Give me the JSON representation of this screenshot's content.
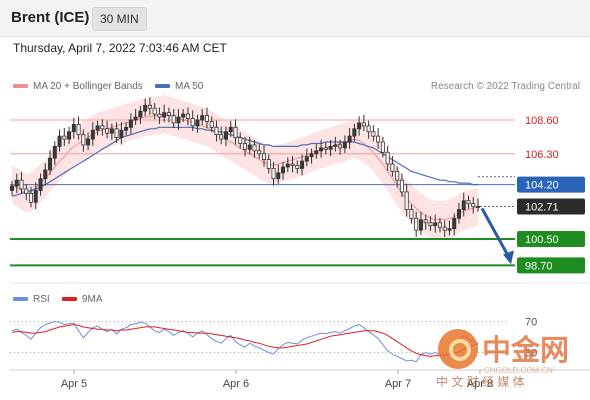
{
  "header": {
    "instrument": "Brent (ICE)",
    "timeframe": "30 MIN"
  },
  "timestamp": "Thursday, April 7, 2022 7:03:46 AM CET",
  "legend": {
    "ma20": "MA 20 + Bollinger Bands",
    "ma50": "MA 50"
  },
  "credit": "Research © 2022 Trading Central",
  "watermark": {
    "brand": "中金网",
    "domain": "CNGOLD.COM.CN",
    "tagline": "中 文 财 经 媒 体"
  },
  "colors": {
    "ma20": "#f08f8f",
    "ma50": "#4a6fb5",
    "band": "#fde3e3",
    "support": "#1f8c1f",
    "rsi": "#6f8ed8",
    "rsi_ma": "#dd2020",
    "arrow": "#2a5d9f"
  },
  "chart_data": [
    {
      "type": "candlestick",
      "title": "Brent (ICE)",
      "timeframe": "30 MIN",
      "x_ticks": [
        "Apr 5",
        "Apr 6",
        "Apr 7",
        "Apr 8"
      ],
      "y_range": [
        97.5,
        110.3
      ],
      "levels": [
        {
          "value": 108.6,
          "label": "108.60",
          "style": "resistance"
        },
        {
          "value": 106.3,
          "label": "106.30",
          "style": "resistance"
        },
        {
          "value": 104.2,
          "label": "104.20",
          "style": "pivot"
        },
        {
          "value": 102.71,
          "label": "102.71",
          "style": "last"
        },
        {
          "value": 100.5,
          "label": "100.50",
          "style": "support"
        },
        {
          "value": 98.7,
          "label": "98.70",
          "style": "support"
        }
      ],
      "forecast_arrow": {
        "from": 102.71,
        "to": 98.7
      },
      "close": [
        104.1,
        104.5,
        103.9,
        103.6,
        103.0,
        103.8,
        104.6,
        105.2,
        106.0,
        106.8,
        107.5,
        107.3,
        107.8,
        108.3,
        107.6,
        106.9,
        107.3,
        107.9,
        108.2,
        108.0,
        107.7,
        108.0,
        107.4,
        107.9,
        108.1,
        108.6,
        108.8,
        109.2,
        109.6,
        109.4,
        109.0,
        108.8,
        109.1,
        108.9,
        108.4,
        108.8,
        109.0,
        108.7,
        108.2,
        108.6,
        108.9,
        108.5,
        108.1,
        107.6,
        107.3,
        107.8,
        108.1,
        107.4,
        107.0,
        106.6,
        106.9,
        106.5,
        106.3,
        105.9,
        105.3,
        104.6,
        105.0,
        105.4,
        105.6,
        105.5,
        105.3,
        105.8,
        106.1,
        106.3,
        106.5,
        106.7,
        106.6,
        106.8,
        106.9,
        106.7,
        107.1,
        107.5,
        108.0,
        108.4,
        108.2,
        107.8,
        107.5,
        107.1,
        106.4,
        105.6,
        105.1,
        104.5,
        103.7,
        102.5,
        101.9,
        101.1,
        101.8,
        101.6,
        101.4,
        101.6,
        101.3,
        101.1,
        101.2,
        101.9,
        102.5,
        103.1,
        102.9,
        102.7,
        102.71
      ],
      "ma20": [
        104.2,
        104.0,
        103.8,
        103.6,
        103.7,
        104.0,
        104.3,
        104.6,
        105.0,
        105.4,
        105.8,
        106.1,
        106.5,
        106.8,
        107.0,
        107.2,
        107.4,
        107.6,
        107.8,
        107.9,
        108.0,
        108.1,
        108.2,
        108.3,
        108.4,
        108.5,
        108.6,
        108.7,
        108.8,
        108.8,
        108.9,
        108.9,
        109.0,
        108.9,
        108.8,
        108.7,
        108.6,
        108.5,
        108.4,
        108.3,
        108.2,
        108.1,
        107.9,
        107.7,
        107.5,
        107.3,
        107.1,
        106.9,
        106.7,
        106.5,
        106.3,
        106.1,
        105.9,
        105.7,
        105.6,
        105.5,
        105.6,
        105.7,
        105.8,
        105.9,
        106.0,
        106.1,
        106.2,
        106.4,
        106.5,
        106.6,
        106.7,
        106.8,
        106.9,
        107.0,
        107.1,
        107.2,
        107.3,
        107.2,
        107.0,
        106.7,
        106.4,
        106.0,
        105.6,
        105.1,
        104.6,
        104.1,
        103.6,
        103.2,
        102.9,
        102.6,
        102.3,
        102.1,
        101.9,
        101.8,
        101.8,
        101.8,
        101.9,
        102.0,
        102.2,
        102.4,
        102.5,
        102.6,
        102.7
      ],
      "ma50": [
        103.4,
        103.5,
        103.6,
        103.7,
        103.8,
        103.9,
        104.0,
        104.2,
        104.4,
        104.6,
        104.8,
        105.0,
        105.2,
        105.4,
        105.6,
        105.8,
        106.0,
        106.2,
        106.4,
        106.6,
        106.8,
        107.0,
        107.2,
        107.4,
        107.5,
        107.6,
        107.7,
        107.8,
        107.9,
        108.0,
        108.0,
        108.1,
        108.1,
        108.1,
        108.1,
        108.1,
        108.1,
        108.1,
        108.1,
        108.0,
        108.0,
        107.9,
        107.9,
        107.8,
        107.8,
        107.7,
        107.6,
        107.5,
        107.4,
        107.3,
        107.2,
        107.1,
        107.0,
        106.9,
        106.9,
        106.8,
        106.8,
        106.8,
        106.8,
        106.8,
        106.8,
        106.9,
        106.9,
        107.0,
        107.0,
        107.0,
        107.1,
        107.1,
        107.1,
        107.1,
        107.1,
        107.1,
        107.1,
        107.0,
        106.9,
        106.8,
        106.7,
        106.5,
        106.3,
        106.1,
        105.9,
        105.7,
        105.5,
        105.3,
        105.1,
        105.0,
        104.9,
        104.8,
        104.7,
        104.6,
        104.5,
        104.5,
        104.4,
        104.4,
        104.3,
        104.3,
        104.3,
        104.2,
        104.2
      ],
      "band_width": 1.3
    },
    {
      "type": "line",
      "title": "RSI",
      "series": [
        {
          "name": "RSI",
          "values": [
            58,
            60,
            56,
            52,
            47,
            55,
            62,
            66,
            68,
            70,
            69,
            66,
            67,
            68,
            58,
            49,
            56,
            62,
            64,
            60,
            57,
            60,
            54,
            60,
            62,
            66,
            67,
            69,
            68,
            63,
            58,
            56,
            60,
            57,
            52,
            56,
            58,
            55,
            50,
            55,
            58,
            53,
            48,
            44,
            42,
            48,
            52,
            44,
            40,
            37,
            42,
            38,
            36,
            33,
            30,
            28,
            35,
            40,
            43,
            42,
            41,
            46,
            49,
            51,
            53,
            55,
            54,
            56,
            57,
            55,
            58,
            61,
            64,
            66,
            62,
            57,
            53,
            48,
            40,
            32,
            28,
            25,
            22,
            19,
            20,
            18,
            27,
            30,
            28,
            30,
            27,
            25,
            28,
            38,
            46,
            52,
            48,
            44,
            42
          ]
        },
        {
          "name": "9MA",
          "values": [
            56,
            57,
            57,
            56,
            55,
            55,
            56,
            57,
            59,
            61,
            63,
            64,
            65,
            66,
            65,
            63,
            62,
            61,
            60,
            60,
            59,
            59,
            58,
            59,
            59,
            60,
            61,
            62,
            63,
            63,
            63,
            62,
            61,
            60,
            59,
            58,
            57,
            56,
            56,
            55,
            55,
            55,
            54,
            53,
            52,
            51,
            50,
            49,
            48,
            46,
            45,
            43,
            42,
            40,
            38,
            37,
            36,
            36,
            37,
            38,
            39,
            40,
            41,
            43,
            45,
            47,
            49,
            51,
            52,
            53,
            54,
            55,
            56,
            57,
            58,
            58,
            58,
            57,
            55,
            52,
            48,
            44,
            40,
            36,
            32,
            29,
            27,
            26,
            25,
            26,
            26,
            27,
            28,
            29,
            31,
            34,
            37,
            39,
            41
          ]
        }
      ],
      "y_range": [
        10,
        90
      ],
      "levels": [
        {
          "value": 70,
          "label": "70"
        },
        {
          "value": 30,
          "label": "30"
        }
      ]
    }
  ]
}
